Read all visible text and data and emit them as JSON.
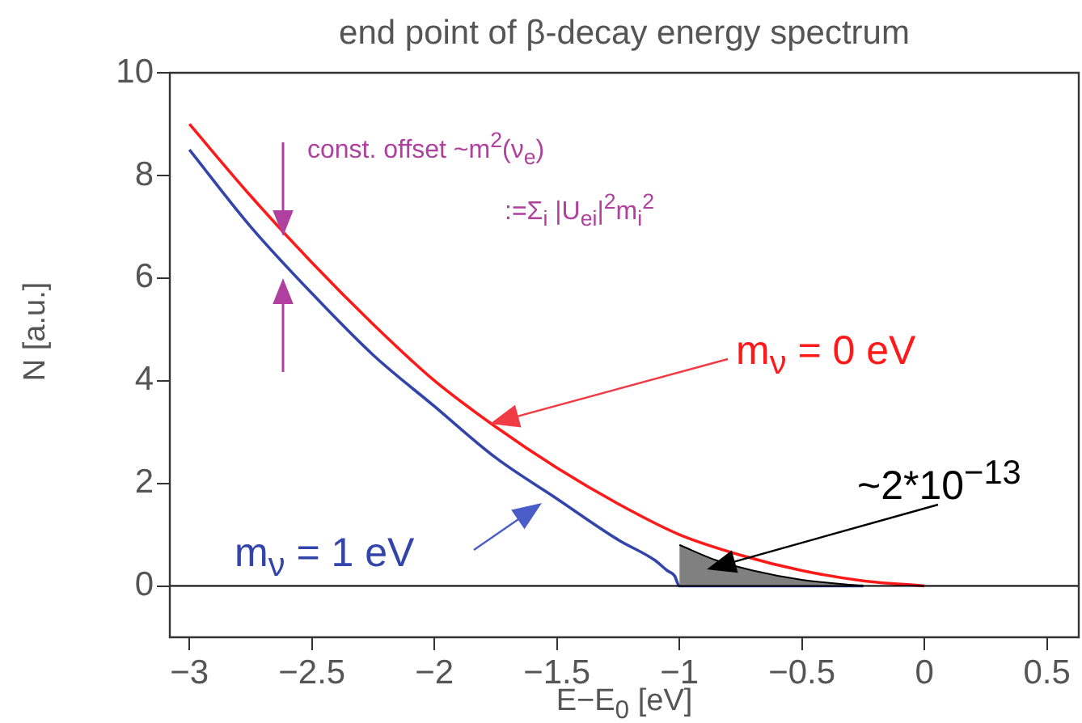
{
  "chart_data": {
    "type": "line",
    "title": "end point of β-decay energy spectrum",
    "xlabel": "E−E$_{0}$ [eV]",
    "ylabel": "N [a.u.]",
    "xlim": [
      -3.08,
      0.63
    ],
    "xticks": [
      {
        "value": -3,
        "label": "−3"
      },
      {
        "value": -2.5,
        "label": "−2.5"
      },
      {
        "value": -2,
        "label": "−2"
      },
      {
        "value": -1.5,
        "label": "−1.5"
      },
      {
        "value": -1,
        "label": "−1"
      },
      {
        "value": -0.5,
        "label": "−0.5"
      },
      0,
      0.5
    ],
    "ylim": [
      -1,
      10
    ],
    "yticks": [
      0,
      2,
      4,
      6,
      8,
      10
    ],
    "grid": false,
    "legend": "bottom left",
    "marker": "none",
    "line_style": "solid",
    "series": [
      {
        "name": "m$_{ν}$ = 0 eV",
        "color": "#ff1a1a",
        "x": [
          -3,
          -2.75,
          -2.5,
          -2.25,
          -2,
          -1.75,
          -1.5,
          -1.25,
          -1,
          -0.75,
          -0.5,
          -0.25,
          0
        ],
        "values": [
          9,
          7.6,
          6.3,
          5.1,
          4,
          3.1,
          2.3,
          1.6,
          1,
          0.6,
          0.3,
          0.1,
          0
        ]
      },
      {
        "name": "m$_{ν}$ = 1 eV",
        "color": "#3344aa",
        "x": [
          -3,
          -2.75,
          -2.5,
          -2.25,
          -2,
          -1.75,
          -1.5,
          -1.25,
          -1.1,
          -1.05,
          -1.02,
          -1,
          -0.25
        ],
        "values": [
          8.5,
          7,
          5.7,
          4.5,
          3.5,
          2.5,
          1.7,
          0.9,
          0.5,
          0.3,
          0.2,
          0,
          0
        ]
      },
      {
        "type": "area",
        "color": "#808080",
        "x": [
          -1,
          -0.85,
          -0.7,
          -0.5,
          -0.25
        ],
        "values": [
          0.8,
          0.5,
          0.3,
          0.12,
          0
        ]
      }
    ],
    "ref_lines": [
      {
        "axis": "y",
        "value": 0,
        "color": "#000000"
      }
    ],
    "annotations": [
      "const. offset ~m$^{2}$(ν$_{e}$)",
      ":=Σ$_{i}$ |U$_{ei}$|$^{2}$m$_{i}$$^{2}$",
      "~2*10$^{−13}$"
    ]
  }
}
